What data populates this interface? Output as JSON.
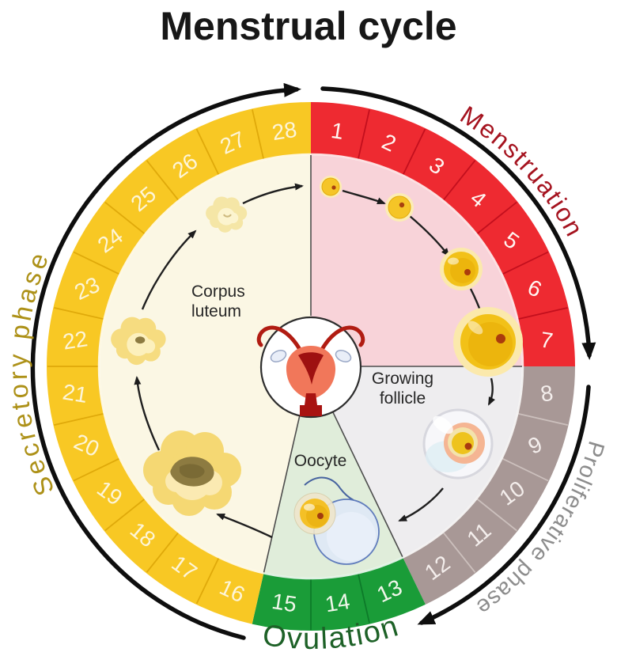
{
  "title": "Menstrual cycle",
  "diagram": {
    "flow_direction": "clockwise",
    "total_days": 28,
    "days": [
      1,
      2,
      3,
      4,
      5,
      6,
      7,
      8,
      9,
      10,
      11,
      12,
      13,
      14,
      15,
      16,
      17,
      18,
      19,
      20,
      21,
      22,
      23,
      24,
      25,
      26,
      27,
      28
    ],
    "phases": [
      {
        "id": "menstruation",
        "label": "Menstruation",
        "day_start": 1,
        "day_end": 7,
        "ring_color": "#ee2a31",
        "tick_color": "#c30f1d",
        "number_color": "#fff6f2",
        "wedge_color": "#f8d3d9",
        "label_color": "#a5131f"
      },
      {
        "id": "proliferative",
        "label": "Proliferative phase",
        "day_start": 8,
        "day_end": 12,
        "ring_color": "#a89896",
        "tick_color": "#ccc0bd",
        "number_color": "#f4eeec",
        "wedge_color": "#eeedef",
        "label_color": "#8d8d8d"
      },
      {
        "id": "ovulation",
        "label": "Ovulation",
        "day_start": 13,
        "day_end": 15,
        "ring_color": "#1a9c38",
        "tick_color": "#0d7a29",
        "number_color": "#f0f7ea",
        "wedge_color": "#e0edda",
        "label_color": "#1d6127"
      },
      {
        "id": "secretory",
        "label": "Secretory phase",
        "day_start": 16,
        "day_end": 28,
        "ring_color": "#f8c824",
        "tick_color": "#dfa90a",
        "number_color": "#fdf5d8",
        "wedge_color": "#fbf7e4",
        "label_color": "#ad9118"
      }
    ],
    "inner_labels": {
      "corpus_luteum_line1": "Corpus",
      "corpus_luteum_line2": "luteum",
      "growing_follicle_line1": "Growing",
      "growing_follicle_line2": "follicle",
      "oocyte": "Oocyte"
    },
    "icons": {
      "center": "uterus-icon",
      "cream_wedge": "corpus-luteum-stages-icon",
      "pink_wedge": "follicle-growth-stages-icon",
      "gray_wedge": "mature-follicle-icon",
      "green_wedge": "oocyte-with-sperm-icon"
    },
    "arc_color": "#0e0e0e",
    "arrow_color": "#1f1f1f"
  }
}
